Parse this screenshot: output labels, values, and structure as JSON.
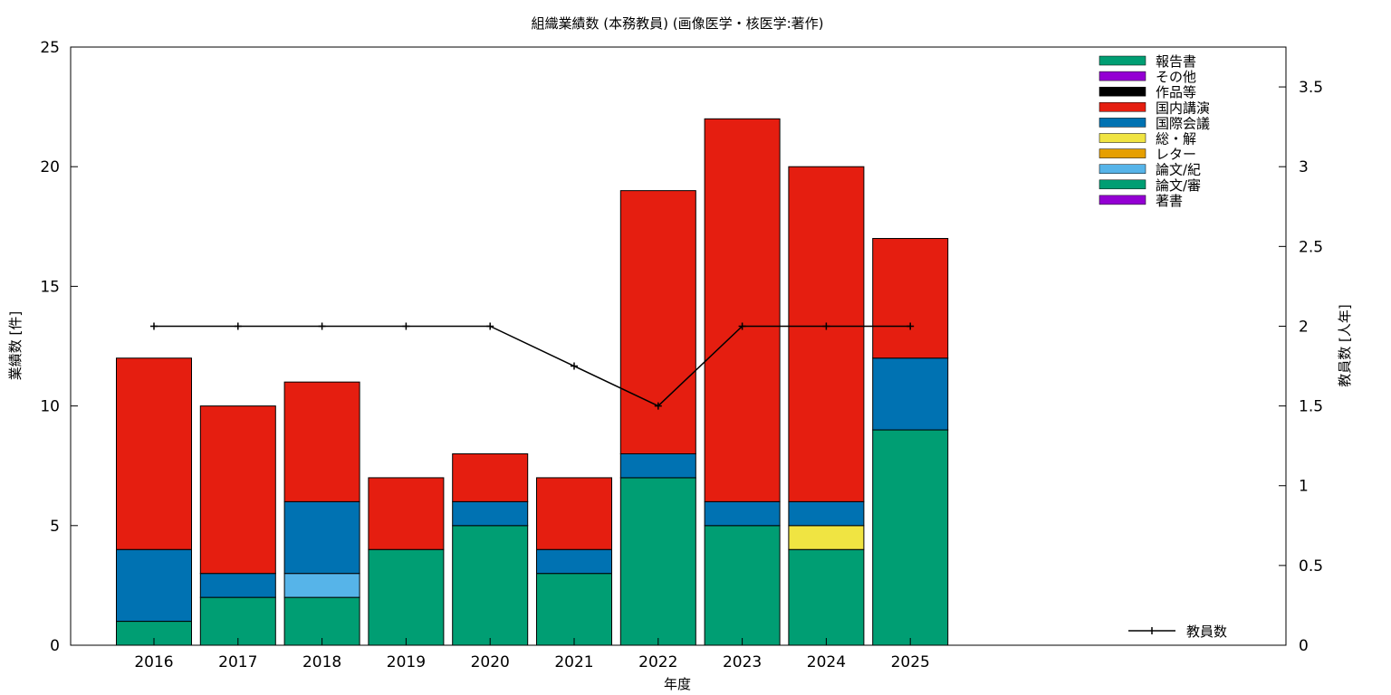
{
  "chart_data": {
    "type": "bar",
    "stacked": true,
    "title": "組織業績数 (本務教員) (画像医学・核医学:著作)",
    "xlabel": "年度",
    "ylabel": "業績数 [件]",
    "y2label": "教員数 [人年]",
    "categories": [
      "2016",
      "2017",
      "2018",
      "2019",
      "2020",
      "2021",
      "2022",
      "2023",
      "2024",
      "2025"
    ],
    "ylim": [
      0,
      25
    ],
    "y_ticks": [
      "0",
      "5",
      "10",
      "15",
      "20",
      "25"
    ],
    "y2lim": [
      0,
      3.75
    ],
    "y2_ticks": [
      "0",
      "0.5",
      "1",
      "1.5",
      "2",
      "2.5",
      "3",
      "3.5"
    ],
    "grid": false,
    "legend_position": "top-right",
    "series": [
      {
        "name": "論文/審",
        "color": "#009e73",
        "values": [
          1,
          2,
          2,
          4,
          5,
          3,
          7,
          5,
          4,
          9
        ]
      },
      {
        "name": "論文/紀",
        "color": "#56b4e9",
        "values": [
          0,
          0,
          1,
          0,
          0,
          0,
          0,
          0,
          0,
          0
        ]
      },
      {
        "name": "総・解",
        "color": "#f0e442",
        "values": [
          0,
          0,
          0,
          0,
          0,
          0,
          0,
          0,
          1,
          0
        ]
      },
      {
        "name": "国際会議",
        "color": "#0072b2",
        "values": [
          3,
          1,
          3,
          0,
          1,
          1,
          1,
          1,
          1,
          3
        ]
      },
      {
        "name": "国内講演",
        "color": "#e51e10",
        "values": [
          8,
          7,
          5,
          3,
          2,
          3,
          11,
          16,
          14,
          5
        ]
      },
      {
        "name": "報告書",
        "color": "#009e73",
        "values": [
          0,
          0,
          0,
          0,
          0,
          0,
          0,
          0,
          0,
          0
        ]
      },
      {
        "name": "その他",
        "color": "#9400d3",
        "values": [
          0,
          0,
          0,
          0,
          0,
          0,
          0,
          0,
          0,
          0
        ]
      },
      {
        "name": "作品等",
        "color": "#000000",
        "values": [
          0,
          0,
          0,
          0,
          0,
          0,
          0,
          0,
          0,
          0
        ]
      },
      {
        "name": "レター",
        "color": "#e69f00",
        "values": [
          0,
          0,
          0,
          0,
          0,
          0,
          0,
          0,
          0,
          0
        ]
      },
      {
        "name": "著書",
        "color": "#9400d3",
        "values": [
          0,
          0,
          0,
          0,
          0,
          0,
          0,
          0,
          0,
          0
        ]
      }
    ],
    "legend_order": [
      "報告書",
      "その他",
      "作品等",
      "国内講演",
      "国際会議",
      "総・解",
      "レター",
      "論文/紀",
      "論文/審",
      "著書"
    ],
    "line_series": {
      "name": "教員数",
      "color": "#000000",
      "axis": "y2",
      "values": [
        2,
        2,
        2,
        2,
        2,
        1.75,
        1.5,
        2,
        2,
        2
      ]
    }
  }
}
